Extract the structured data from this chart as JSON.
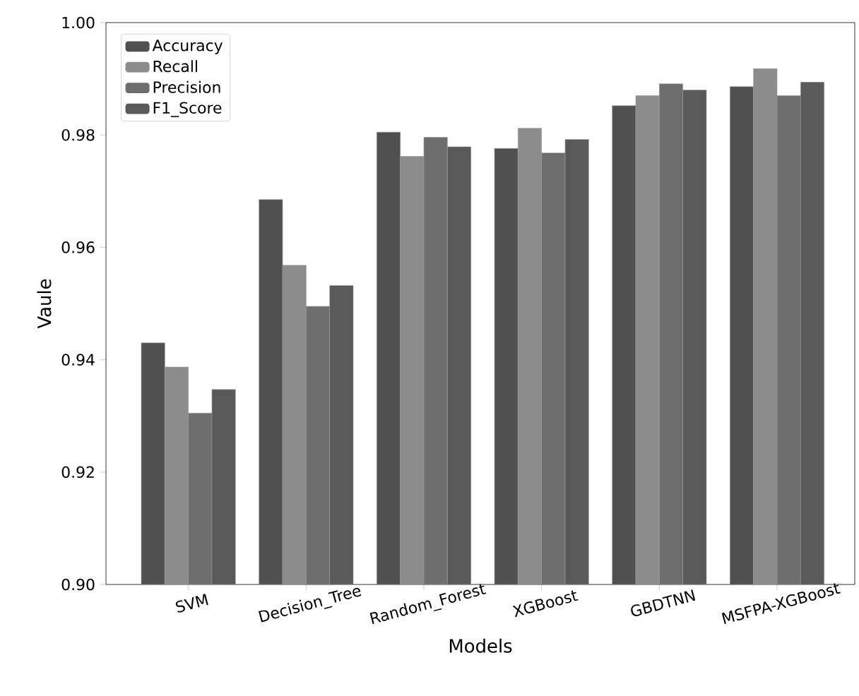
{
  "chart_data": {
    "type": "bar",
    "xlabel": "Models",
    "ylabel": "Vaule",
    "categories": [
      "SVM",
      "Decision_Tree",
      "Random_Forest",
      "XGBoost",
      "GBDTNN",
      "MSFPA-XGBoost"
    ],
    "series": [
      {
        "name": "Accuracy",
        "color": "#505050",
        "values": [
          0.943,
          0.9685,
          0.9805,
          0.9776,
          0.9852,
          0.9886
        ]
      },
      {
        "name": "Recall",
        "color": "#8c8c8c",
        "values": [
          0.9387,
          0.9568,
          0.9762,
          0.9812,
          0.987,
          0.9918
        ]
      },
      {
        "name": "Precision",
        "color": "#6e6e6e",
        "values": [
          0.9305,
          0.9495,
          0.9796,
          0.9768,
          0.9891,
          0.987
        ]
      },
      {
        "name": "F1_Score",
        "color": "#595959",
        "values": [
          0.9347,
          0.9532,
          0.9779,
          0.9792,
          0.988,
          0.9894
        ]
      }
    ],
    "ylim": [
      0.9,
      1.0
    ],
    "yticks": [
      {
        "value": 0.9,
        "label": "0.90"
      },
      0.92,
      0.94,
      0.96,
      0.98,
      {
        "value": 1.0,
        "label": "1.00"
      }
    ],
    "legend": "top left",
    "grid": false
  }
}
